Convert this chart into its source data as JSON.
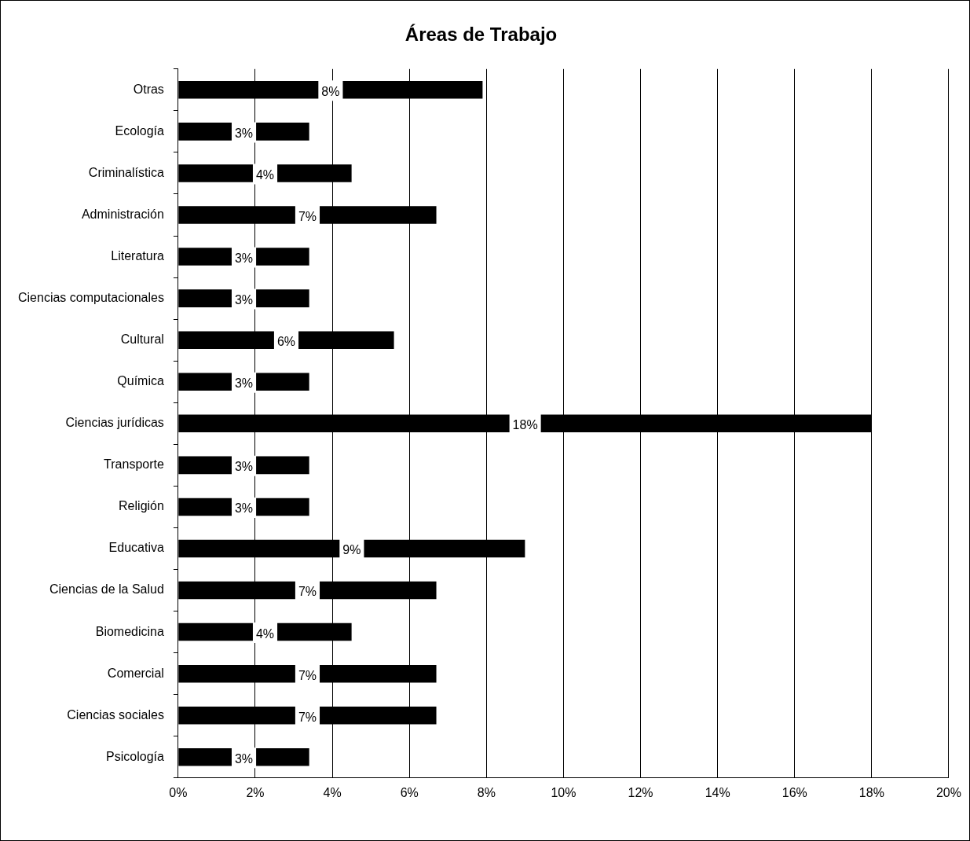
{
  "chart_data": {
    "type": "bar",
    "orientation": "horizontal",
    "title": "Áreas de Trabajo",
    "categories": [
      "Otras",
      "Ecología",
      "Criminalística",
      "Administración",
      "Literatura",
      "Ciencias computacionales",
      "Cultural",
      "Química",
      "Ciencias jurídicas",
      "Transporte",
      "Religión",
      "Educativa",
      "Ciencias de la Salud",
      "Biomedicina",
      "Comercial",
      "Ciencias sociales",
      "Psicología"
    ],
    "values": [
      7.9,
      3.4,
      4.5,
      6.7,
      3.4,
      3.4,
      5.6,
      3.4,
      18.0,
      3.4,
      3.4,
      9.0,
      6.7,
      4.5,
      6.7,
      6.7,
      3.4
    ],
    "value_labels": [
      "8%",
      "3%",
      "4%",
      "7%",
      "3%",
      "3%",
      "6%",
      "3%",
      "18%",
      "3%",
      "3%",
      "9%",
      "7%",
      "4%",
      "7%",
      "7%",
      "3%"
    ],
    "color": "#000000",
    "xlim": [
      0,
      20
    ],
    "xticks": [
      {
        "value": 0,
        "label": "0%"
      },
      {
        "value": 2,
        "label": "2%"
      },
      {
        "value": 4,
        "label": "4%"
      },
      {
        "value": 6,
        "label": "6%"
      },
      {
        "value": 8,
        "label": "8%"
      },
      {
        "value": 10,
        "label": "10%"
      },
      {
        "value": 12,
        "label": "12%"
      },
      {
        "value": 14,
        "label": "14%"
      },
      {
        "value": 16,
        "label": "16%"
      },
      {
        "value": 18,
        "label": "18%"
      },
      {
        "value": 20,
        "label": "20%"
      }
    ],
    "grid": "x",
    "legend": false
  }
}
